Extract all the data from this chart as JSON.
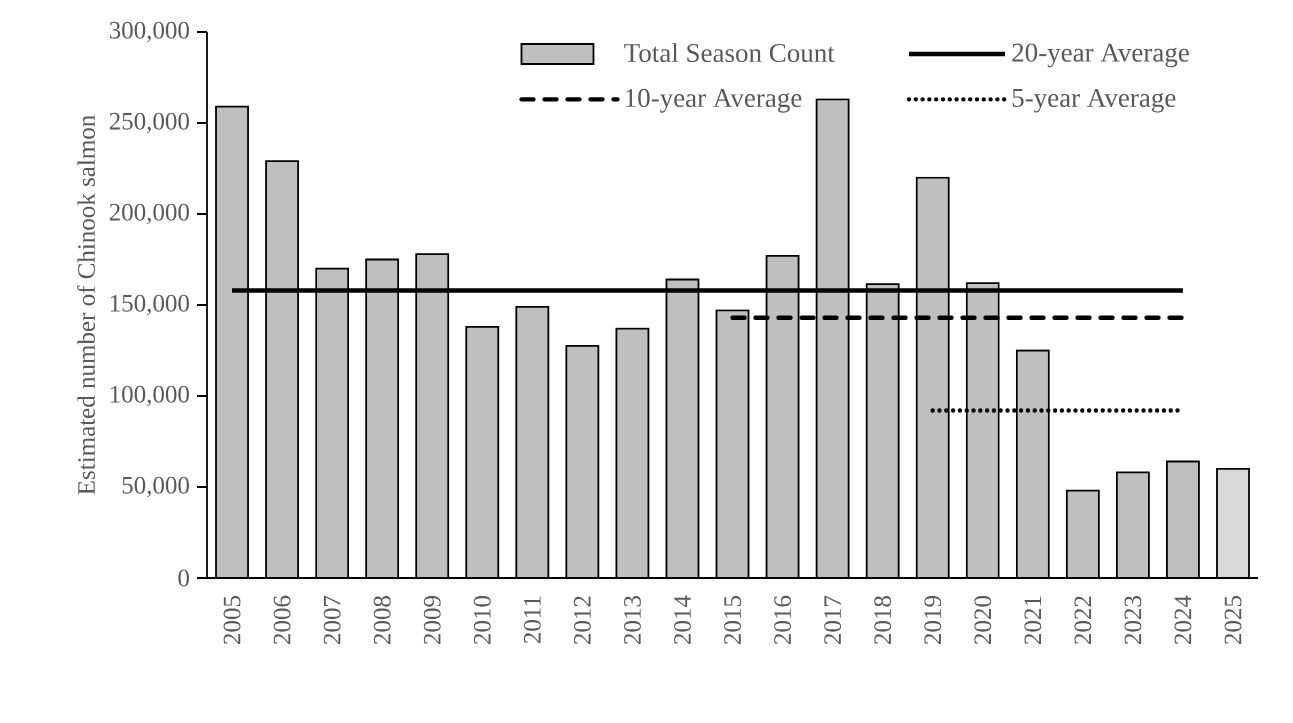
{
  "chart_data": {
    "type": "bar",
    "ylabel": "Estimated number of Chinook salmon",
    "categories": [
      "2005",
      "2006",
      "2007",
      "2008",
      "2009",
      "2010",
      "2011",
      "2012",
      "2013",
      "2014",
      "2015",
      "2016",
      "2017",
      "2018",
      "2019",
      "2020",
      "2021",
      "2022",
      "2023",
      "2024",
      "2025"
    ],
    "series": [
      {
        "name": "Total Season Count",
        "colors": [
          "#bfbfbf",
          "#bfbfbf",
          "#bfbfbf",
          "#bfbfbf",
          "#bfbfbf",
          "#bfbfbf",
          "#bfbfbf",
          "#bfbfbf",
          "#bfbfbf",
          "#bfbfbf",
          "#bfbfbf",
          "#bfbfbf",
          "#bfbfbf",
          "#bfbfbf",
          "#bfbfbf",
          "#bfbfbf",
          "#bfbfbf",
          "#bfbfbf",
          "#bfbfbf",
          "#bfbfbf",
          "#d9d9d9"
        ],
        "values": [
          259000,
          229000,
          170000,
          175000,
          178000,
          138000,
          149000,
          127500,
          137000,
          164000,
          147000,
          177000,
          263000,
          161500,
          220000,
          162000,
          125000,
          48000,
          58000,
          64000,
          60000
        ]
      },
      {
        "name": "20-year Average",
        "type": "line",
        "color": "#000000",
        "line_style": "solid",
        "values": [
          158000,
          158000,
          158000,
          158000,
          158000,
          158000,
          158000,
          158000,
          158000,
          158000,
          158000,
          158000,
          158000,
          158000,
          158000,
          158000,
          158000,
          158000,
          158000,
          158000,
          null
        ]
      },
      {
        "name": "10-year Average",
        "type": "line",
        "color": "#000000",
        "line_style": "dashed",
        "values": [
          null,
          null,
          null,
          null,
          null,
          null,
          null,
          null,
          null,
          null,
          143000,
          143000,
          143000,
          143000,
          143000,
          143000,
          143000,
          143000,
          143000,
          143000,
          null
        ]
      },
      {
        "name": "5-year Average",
        "type": "line",
        "color": "#000000",
        "line_style": "dotted",
        "values": [
          null,
          null,
          null,
          null,
          null,
          null,
          null,
          null,
          null,
          null,
          null,
          null,
          null,
          null,
          92000,
          92000,
          92000,
          92000,
          92000,
          92000,
          null
        ]
      }
    ],
    "ylim": [
      0,
      300000
    ],
    "yticks": [
      0,
      {
        "value": 50000,
        "label": "50,000"
      },
      {
        "value": 100000,
        "label": "100,000"
      },
      {
        "value": 150000,
        "label": "150,000"
      },
      {
        "value": 200000,
        "label": "200,000"
      },
      {
        "value": 250000,
        "label": "250,000"
      },
      {
        "value": 300000,
        "label": "300,000"
      }
    ],
    "legend": "top right",
    "grid": false
  }
}
